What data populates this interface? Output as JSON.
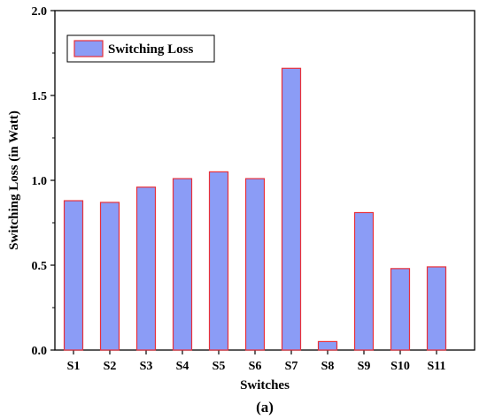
{
  "chart_data": {
    "type": "bar",
    "categories": [
      "S1",
      "S2",
      "S3",
      "S4",
      "S5",
      "S6",
      "S7",
      "S8",
      "S9",
      "S10",
      "S11"
    ],
    "series": [
      {
        "name": "Switching Loss",
        "values": [
          0.88,
          0.87,
          0.96,
          1.01,
          1.05,
          1.01,
          1.66,
          0.05,
          0.81,
          0.48,
          0.49
        ]
      }
    ],
    "xlabel": "Switches",
    "ylabel": "Switching Loss (in Watt)",
    "ylim": [
      0,
      2.0
    ],
    "yticks": [
      "0.0",
      "0.5",
      "1.0",
      "1.5",
      "2.0"
    ],
    "grid": false,
    "legend_position": "top-left",
    "caption": "(a)",
    "colors": {
      "bar_fill": "#8b9cf6",
      "bar_stroke": "#e8303a",
      "axis": "#000000"
    }
  }
}
